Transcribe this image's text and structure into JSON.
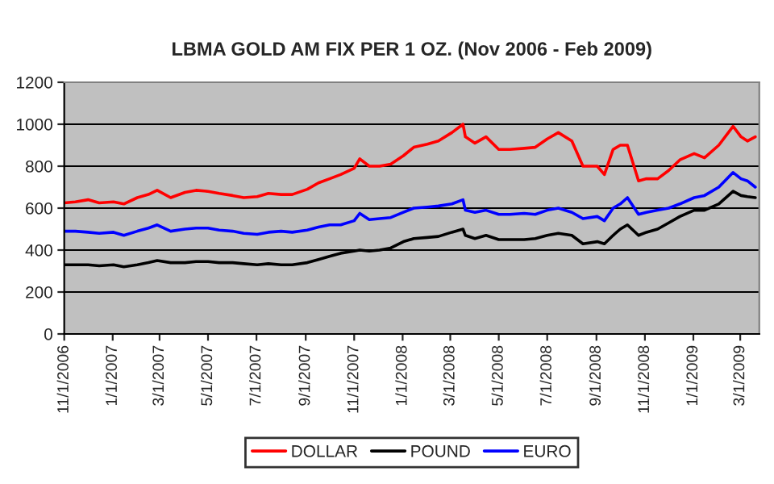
{
  "chart_data": {
    "type": "line",
    "title": "LBMA GOLD AM FIX PER 1 OZ. (Nov 2006 - Feb 2009)",
    "x": [
      "2006-11-01",
      "2006-11-15",
      "2006-12-01",
      "2006-12-15",
      "2007-01-02",
      "2007-01-15",
      "2007-02-01",
      "2007-02-15",
      "2007-02-26",
      "2007-03-15",
      "2007-04-02",
      "2007-04-16",
      "2007-05-01",
      "2007-05-15",
      "2007-06-01",
      "2007-06-15",
      "2007-07-02",
      "2007-07-16",
      "2007-08-01",
      "2007-08-15",
      "2007-09-03",
      "2007-09-17",
      "2007-10-01",
      "2007-10-15",
      "2007-11-01",
      "2007-11-08",
      "2007-11-20",
      "2007-12-03",
      "2007-12-17",
      "2008-01-02",
      "2008-01-15",
      "2008-02-01",
      "2008-02-15",
      "2008-03-03",
      "2008-03-17",
      "2008-03-20",
      "2008-04-01",
      "2008-04-15",
      "2008-05-01",
      "2008-05-15",
      "2008-06-02",
      "2008-06-16",
      "2008-07-01",
      "2008-07-15",
      "2008-08-01",
      "2008-08-15",
      "2008-09-02",
      "2008-09-11",
      "2008-09-22",
      "2008-10-01",
      "2008-10-10",
      "2008-10-24",
      "2008-11-03",
      "2008-11-17",
      "2008-12-01",
      "2008-12-15",
      "2009-01-02",
      "2009-01-15",
      "2009-02-02",
      "2009-02-20",
      "2009-03-02",
      "2009-03-10",
      "2009-03-20"
    ],
    "series": [
      {
        "name": "DOLLAR",
        "color": "#ff0000",
        "values": [
          625,
          630,
          640,
          625,
          630,
          620,
          650,
          665,
          685,
          650,
          675,
          685,
          680,
          670,
          660,
          650,
          655,
          670,
          665,
          665,
          690,
          720,
          740,
          760,
          790,
          835,
          800,
          800,
          810,
          850,
          890,
          905,
          920,
          960,
          1000,
          940,
          910,
          940,
          880,
          880,
          885,
          890,
          930,
          960,
          920,
          800,
          800,
          760,
          880,
          900,
          900,
          730,
          740,
          740,
          780,
          830,
          860,
          840,
          900,
          990,
          940,
          920,
          940
        ]
      },
      {
        "name": "POUND",
        "color": "#000000",
        "values": [
          330,
          330,
          330,
          325,
          330,
          320,
          330,
          340,
          350,
          340,
          340,
          345,
          345,
          340,
          340,
          335,
          330,
          335,
          330,
          330,
          340,
          355,
          370,
          385,
          395,
          400,
          395,
          400,
          410,
          440,
          455,
          460,
          465,
          485,
          500,
          470,
          455,
          470,
          450,
          450,
          450,
          455,
          470,
          480,
          470,
          430,
          440,
          430,
          470,
          500,
          520,
          470,
          485,
          500,
          530,
          560,
          590,
          590,
          620,
          680,
          660,
          655,
          650
        ]
      },
      {
        "name": "EURO",
        "color": "#0000ff",
        "values": [
          490,
          490,
          485,
          480,
          485,
          470,
          490,
          505,
          520,
          490,
          500,
          505,
          505,
          495,
          490,
          480,
          475,
          485,
          490,
          485,
          495,
          510,
          520,
          520,
          540,
          575,
          545,
          550,
          555,
          580,
          600,
          605,
          610,
          620,
          640,
          590,
          580,
          590,
          570,
          570,
          575,
          570,
          590,
          600,
          580,
          550,
          560,
          540,
          600,
          620,
          650,
          570,
          580,
          590,
          600,
          620,
          650,
          660,
          700,
          770,
          740,
          730,
          700
        ]
      }
    ],
    "xlim": [
      "2006-11-01",
      "2009-03-25"
    ],
    "xticks": [
      {
        "value": "2006-11-01",
        "label": "11/1/2006"
      },
      {
        "value": "2007-01-01",
        "label": "1/1/2007"
      },
      {
        "value": "2007-03-01",
        "label": "3/1/2007"
      },
      {
        "value": "2007-05-01",
        "label": "5/1/2007"
      },
      {
        "value": "2007-07-01",
        "label": "7/1/2007"
      },
      {
        "value": "2007-09-01",
        "label": "9/1/2007"
      },
      {
        "value": "2007-11-01",
        "label": "11/1/2007"
      },
      {
        "value": "2008-01-01",
        "label": "1/1/2008"
      },
      {
        "value": "2008-03-01",
        "label": "3/1/2008"
      },
      {
        "value": "2008-05-01",
        "label": "5/1/2008"
      },
      {
        "value": "2008-07-01",
        "label": "7/1/2008"
      },
      {
        "value": "2008-09-01",
        "label": "9/1/2008"
      },
      {
        "value": "2008-11-01",
        "label": "11/1/2008"
      },
      {
        "value": "2009-01-01",
        "label": "1/1/2009"
      },
      {
        "value": "2009-03-01",
        "label": "3/1/2009"
      }
    ],
    "ylim": [
      0,
      1200
    ],
    "yticks": [
      0,
      200,
      400,
      600,
      800,
      1000,
      1200
    ],
    "grid": "y",
    "legend": "bottom",
    "marker": "none",
    "line_style": "solid"
  }
}
